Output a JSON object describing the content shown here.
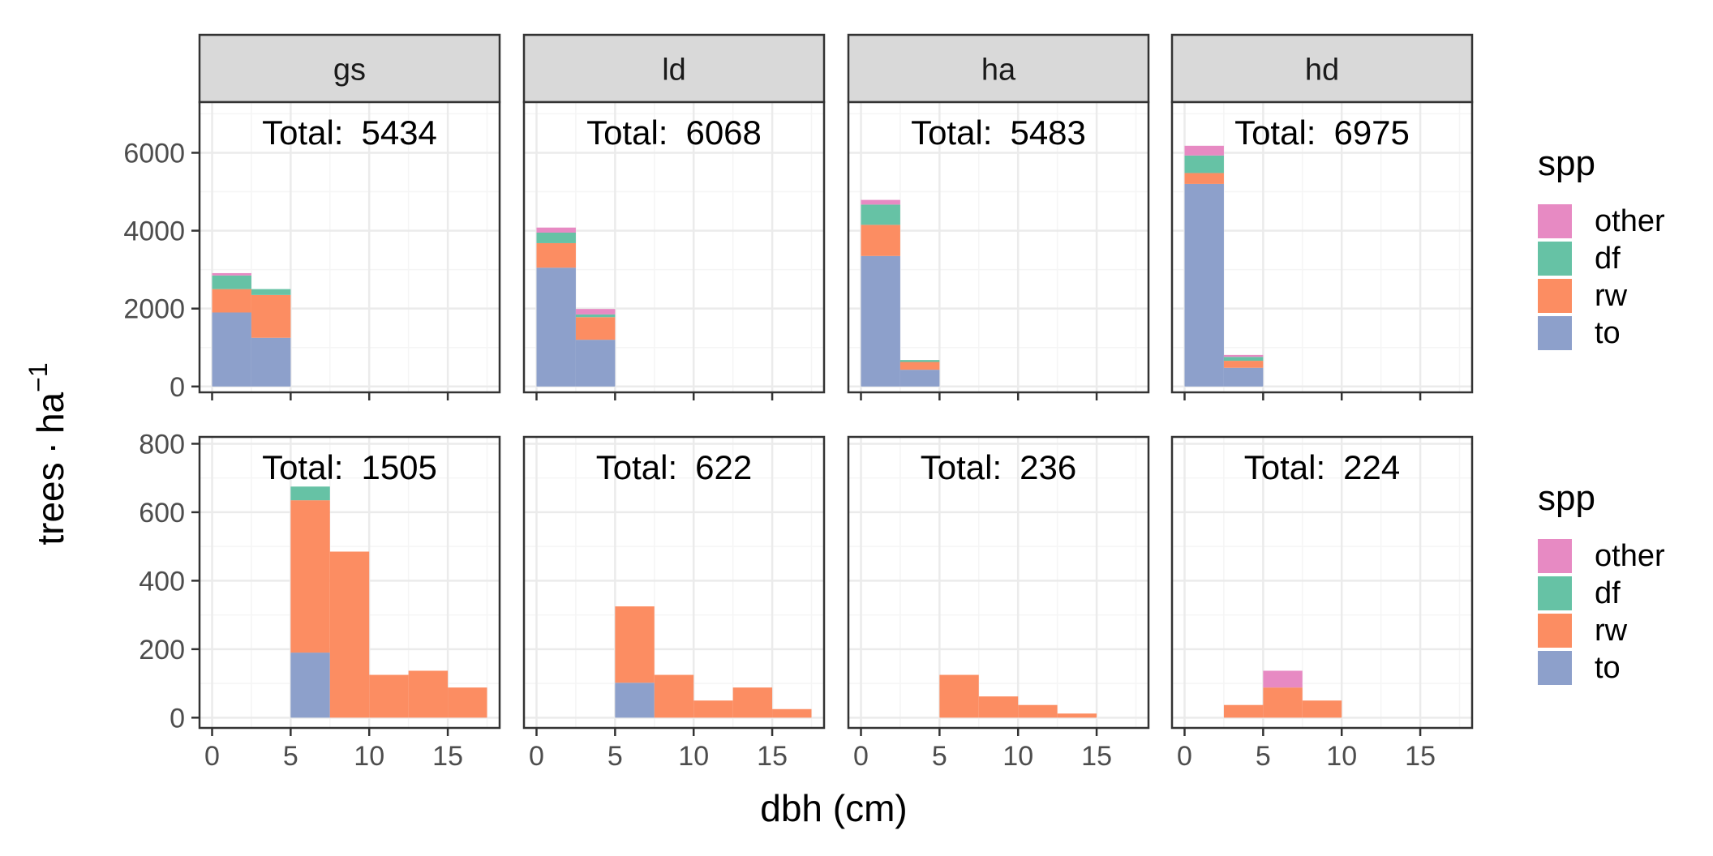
{
  "chart_data": {
    "type": "bar",
    "subtype": "stacked-histogram-facet-grid",
    "xlabel": "dbh (cm)",
    "ylabel_main": "trees",
    "ylabel_unit_base": "ha",
    "ylabel_unit_exp": "−1",
    "x_ticks": [
      0,
      5,
      10,
      15
    ],
    "xlim": [
      -0.8,
      18.3
    ],
    "bin_width": 2.5,
    "bin_starts": [
      0,
      2.5,
      5,
      7.5,
      10,
      12.5,
      15
    ],
    "facets": [
      "gs",
      "ld",
      "ha",
      "hd"
    ],
    "legend": {
      "title": "spp",
      "entries": [
        "other",
        "df",
        "rw",
        "to"
      ]
    },
    "colors": {
      "other": "#e78ac3",
      "df": "#66c2a5",
      "rw": "#fc8d62",
      "to": "#8da0cb"
    },
    "total_prefix": "Total:",
    "stack_order": [
      "to",
      "rw",
      "df",
      "other"
    ],
    "rows": [
      {
        "ylim": [
          -150,
          7300
        ],
        "y_ticks": [
          0,
          2000,
          4000,
          6000
        ],
        "panels": [
          {
            "facet": "gs",
            "total": 5434,
            "series": [
              {
                "name": "to",
                "values": [
                  1900,
                  1250,
                  0,
                  0,
                  0,
                  0,
                  0
                ]
              },
              {
                "name": "rw",
                "values": [
                  600,
                  1100,
                  0,
                  0,
                  0,
                  0,
                  0
                ]
              },
              {
                "name": "df",
                "values": [
                  350,
                  150,
                  0,
                  0,
                  0,
                  0,
                  0
                ]
              },
              {
                "name": "other",
                "values": [
                  60,
                  0,
                  0,
                  0,
                  0,
                  0,
                  0
                ]
              }
            ]
          },
          {
            "facet": "ld",
            "total": 6068,
            "series": [
              {
                "name": "to",
                "values": [
                  3050,
                  1200,
                  0,
                  0,
                  0,
                  0,
                  0
                ]
              },
              {
                "name": "rw",
                "values": [
                  630,
                  580,
                  0,
                  0,
                  0,
                  0,
                  0
                ]
              },
              {
                "name": "df",
                "values": [
                  270,
                  70,
                  0,
                  0,
                  0,
                  0,
                  0
                ]
              },
              {
                "name": "other",
                "values": [
                  130,
                  140,
                  0,
                  0,
                  0,
                  0,
                  0
                ]
              }
            ]
          },
          {
            "facet": "ha",
            "total": 5483,
            "series": [
              {
                "name": "to",
                "values": [
                  3350,
                  430,
                  0,
                  0,
                  0,
                  0,
                  0
                ]
              },
              {
                "name": "rw",
                "values": [
                  800,
                  200,
                  0,
                  0,
                  0,
                  0,
                  0
                ]
              },
              {
                "name": "df",
                "values": [
                  520,
                  50,
                  0,
                  0,
                  0,
                  0,
                  0
                ]
              },
              {
                "name": "other",
                "values": [
                  120,
                  0,
                  0,
                  0,
                  0,
                  0,
                  0
                ]
              }
            ]
          },
          {
            "facet": "hd",
            "total": 6975,
            "series": [
              {
                "name": "to",
                "values": [
                  5200,
                  480,
                  0,
                  0,
                  0,
                  0,
                  0
                ]
              },
              {
                "name": "rw",
                "values": [
                  280,
                  180,
                  0,
                  0,
                  0,
                  0,
                  0
                ]
              },
              {
                "name": "df",
                "values": [
                  450,
                  100,
                  0,
                  0,
                  0,
                  0,
                  0
                ]
              },
              {
                "name": "other",
                "values": [
                  250,
                  50,
                  0,
                  0,
                  0,
                  0,
                  0
                ]
              }
            ]
          }
        ]
      },
      {
        "ylim": [
          -30,
          820
        ],
        "y_ticks": [
          0,
          200,
          400,
          600,
          800
        ],
        "panels": [
          {
            "facet": "gs",
            "total": 1505,
            "series": [
              {
                "name": "to",
                "values": [
                  0,
                  0,
                  190,
                  0,
                  0,
                  0,
                  0
                ]
              },
              {
                "name": "rw",
                "values": [
                  0,
                  0,
                  445,
                  485,
                  125,
                  137,
                  88
                ]
              },
              {
                "name": "df",
                "values": [
                  0,
                  0,
                  40,
                  0,
                  0,
                  0,
                  0
                ]
              },
              {
                "name": "other",
                "values": [
                  0,
                  0,
                  0,
                  0,
                  0,
                  0,
                  0
                ]
              }
            ]
          },
          {
            "facet": "ld",
            "total": 622,
            "series": [
              {
                "name": "to",
                "values": [
                  0,
                  0,
                  102,
                  0,
                  0,
                  0,
                  0
                ]
              },
              {
                "name": "rw",
                "values": [
                  0,
                  0,
                  223,
                  125,
                  50,
                  88,
                  25
                ]
              },
              {
                "name": "df",
                "values": [
                  0,
                  0,
                  0,
                  0,
                  0,
                  0,
                  0
                ]
              },
              {
                "name": "other",
                "values": [
                  0,
                  0,
                  0,
                  0,
                  0,
                  0,
                  0
                ]
              }
            ]
          },
          {
            "facet": "ha",
            "total": 236,
            "series": [
              {
                "name": "to",
                "values": [
                  0,
                  0,
                  0,
                  0,
                  0,
                  0,
                  0
                ]
              },
              {
                "name": "rw",
                "values": [
                  0,
                  0,
                  125,
                  62,
                  37,
                  12,
                  0
                ]
              },
              {
                "name": "df",
                "values": [
                  0,
                  0,
                  0,
                  0,
                  0,
                  0,
                  0
                ]
              },
              {
                "name": "other",
                "values": [
                  0,
                  0,
                  0,
                  0,
                  0,
                  0,
                  0
                ]
              }
            ]
          },
          {
            "facet": "hd",
            "total": 224,
            "series": [
              {
                "name": "to",
                "values": [
                  0,
                  0,
                  0,
                  0,
                  0,
                  0,
                  0
                ]
              },
              {
                "name": "rw",
                "values": [
                  0,
                  37,
                  88,
                  50,
                  0,
                  0,
                  0
                ]
              },
              {
                "name": "df",
                "values": [
                  0,
                  0,
                  0,
                  0,
                  0,
                  0,
                  0
                ]
              },
              {
                "name": "other",
                "values": [
                  0,
                  0,
                  49,
                  0,
                  0,
                  0,
                  0
                ]
              }
            ]
          }
        ]
      }
    ]
  }
}
